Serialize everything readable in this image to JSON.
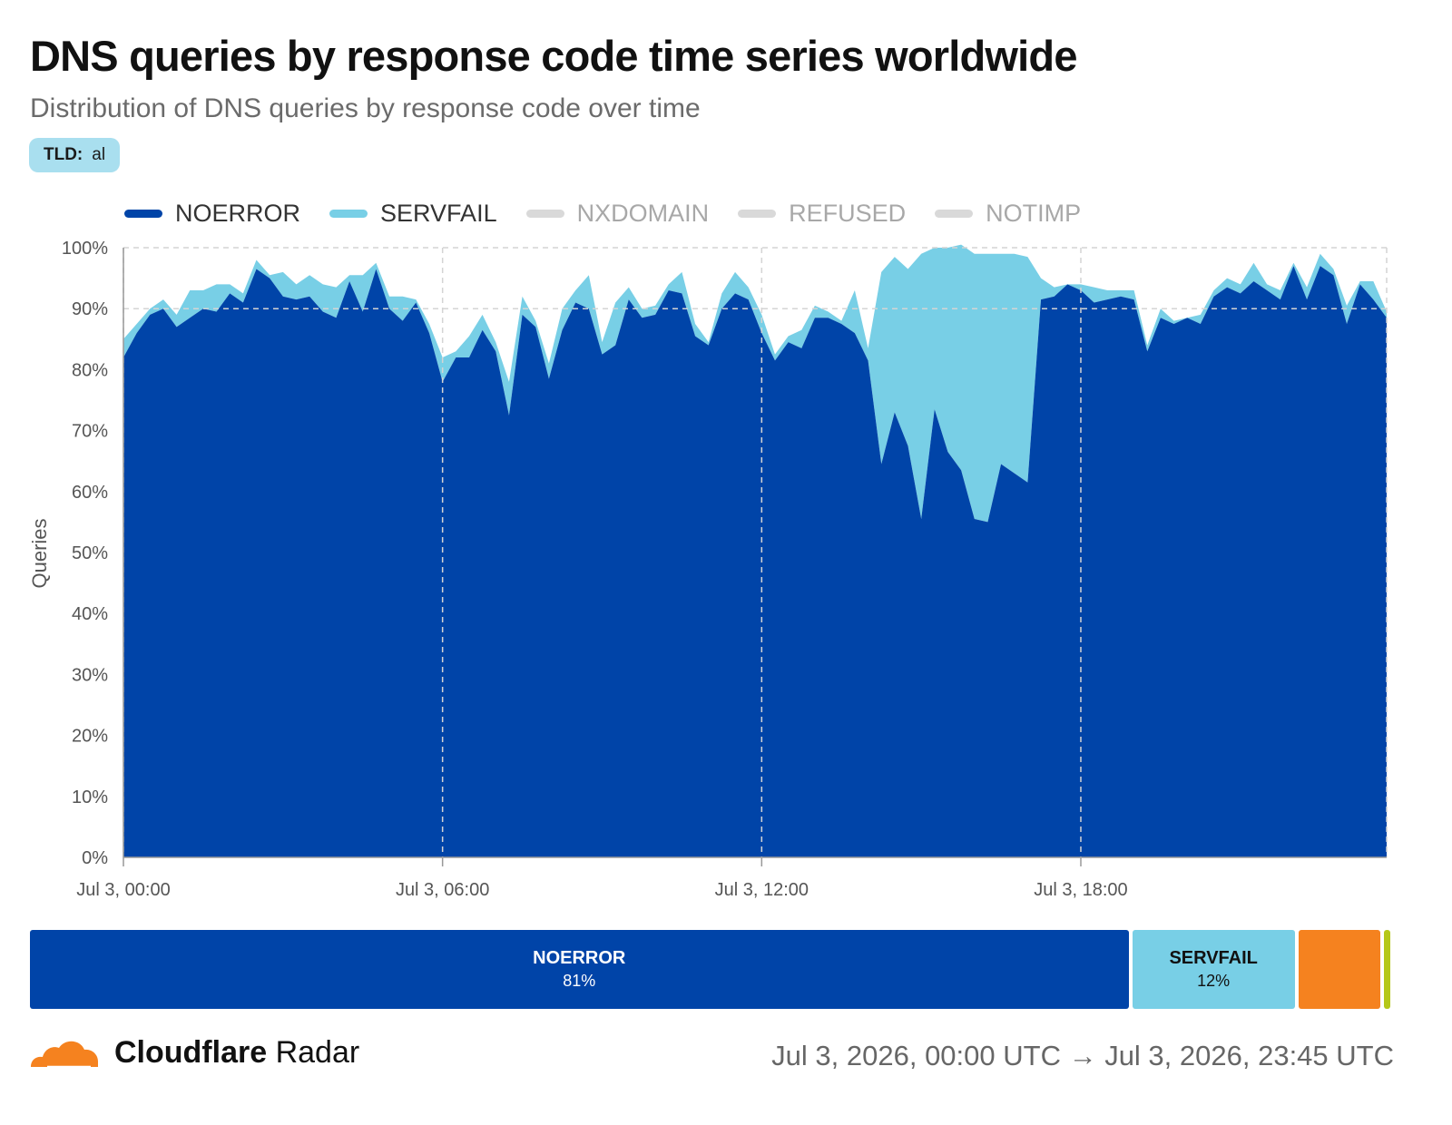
{
  "header": {
    "title": "DNS queries by response code time series worldwide",
    "subtitle": "Distribution of DNS queries by response code over time",
    "filter": {
      "key": "TLD:",
      "value": "al",
      "bg": "#a9dfef"
    }
  },
  "legend": [
    {
      "name": "NOERROR",
      "color": "#0044a8",
      "active": true
    },
    {
      "name": "SERVFAIL",
      "color": "#78cfe6",
      "active": true
    },
    {
      "name": "NXDOMAIN",
      "color": "#d9d9d9",
      "active": false
    },
    {
      "name": "REFUSED",
      "color": "#d9d9d9",
      "active": false
    },
    {
      "name": "NOTIMP",
      "color": "#d9d9d9",
      "active": false
    }
  ],
  "chart_data": {
    "type": "area",
    "stacked": true,
    "ylabel": "Queries",
    "ylim": [
      0,
      100
    ],
    "yticks": [
      "0%",
      "10%",
      "20%",
      "30%",
      "40%",
      "50%",
      "60%",
      "70%",
      "80%",
      "90%",
      "100%"
    ],
    "xlim": [
      "Jul 3, 00:00",
      "Jul 3, 23:45"
    ],
    "xticks": [
      "Jul 3, 00:00",
      "Jul 3, 06:00",
      "Jul 3, 12:00",
      "Jul 3, 18:00"
    ],
    "grid": true,
    "x": [
      "Jul 3, 00:00",
      "Jul 3, 00:15",
      "Jul 3, 00:30",
      "Jul 3, 00:45",
      "Jul 3, 01:00",
      "Jul 3, 01:15",
      "Jul 3, 01:30",
      "Jul 3, 01:45",
      "Jul 3, 02:00",
      "Jul 3, 02:15",
      "Jul 3, 02:30",
      "Jul 3, 02:45",
      "Jul 3, 03:00",
      "Jul 3, 03:15",
      "Jul 3, 03:30",
      "Jul 3, 03:45",
      "Jul 3, 04:00",
      "Jul 3, 04:15",
      "Jul 3, 04:30",
      "Jul 3, 04:45",
      "Jul 3, 05:00",
      "Jul 3, 05:15",
      "Jul 3, 05:30",
      "Jul 3, 05:45",
      "Jul 3, 06:00",
      "Jul 3, 06:15",
      "Jul 3, 06:30",
      "Jul 3, 06:45",
      "Jul 3, 07:00",
      "Jul 3, 07:15",
      "Jul 3, 07:30",
      "Jul 3, 07:45",
      "Jul 3, 08:00",
      "Jul 3, 08:15",
      "Jul 3, 08:30",
      "Jul 3, 08:45",
      "Jul 3, 09:00",
      "Jul 3, 09:15",
      "Jul 3, 09:30",
      "Jul 3, 09:45",
      "Jul 3, 10:00",
      "Jul 3, 10:15",
      "Jul 3, 10:30",
      "Jul 3, 10:45",
      "Jul 3, 11:00",
      "Jul 3, 11:15",
      "Jul 3, 11:30",
      "Jul 3, 11:45",
      "Jul 3, 12:00",
      "Jul 3, 12:15",
      "Jul 3, 12:30",
      "Jul 3, 12:45",
      "Jul 3, 13:00",
      "Jul 3, 13:15",
      "Jul 3, 13:30",
      "Jul 3, 13:45",
      "Jul 3, 14:00",
      "Jul 3, 14:15",
      "Jul 3, 14:30",
      "Jul 3, 14:45",
      "Jul 3, 15:00",
      "Jul 3, 15:15",
      "Jul 3, 15:30",
      "Jul 3, 15:45",
      "Jul 3, 16:00",
      "Jul 3, 16:15",
      "Jul 3, 16:30",
      "Jul 3, 16:45",
      "Jul 3, 17:00",
      "Jul 3, 17:15",
      "Jul 3, 17:30",
      "Jul 3, 17:45",
      "Jul 3, 18:00",
      "Jul 3, 18:15",
      "Jul 3, 18:30",
      "Jul 3, 18:45",
      "Jul 3, 19:00",
      "Jul 3, 19:15",
      "Jul 3, 19:30",
      "Jul 3, 19:45",
      "Jul 3, 20:00",
      "Jul 3, 20:15",
      "Jul 3, 20:30",
      "Jul 3, 20:45",
      "Jul 3, 21:00",
      "Jul 3, 21:15",
      "Jul 3, 21:30",
      "Jul 3, 21:45",
      "Jul 3, 22:00",
      "Jul 3, 22:15",
      "Jul 3, 22:30",
      "Jul 3, 22:45",
      "Jul 3, 23:00",
      "Jul 3, 23:15",
      "Jul 3, 23:30",
      "Jul 3, 23:45"
    ],
    "series": [
      {
        "name": "NOERROR",
        "color": "#0044a8",
        "values": [
          82,
          86,
          89,
          90,
          87,
          88.5,
          90,
          89.5,
          92.5,
          91,
          96.5,
          95,
          92,
          91.5,
          92,
          89.5,
          88.5,
          94.5,
          89.5,
          96.5,
          90,
          88,
          91,
          86,
          78,
          82,
          82,
          86.5,
          83,
          72.5,
          89,
          87,
          78.5,
          86.5,
          91,
          90,
          82.5,
          84,
          91.5,
          88.5,
          89,
          93,
          92.5,
          85.5,
          84,
          90,
          92.5,
          91.5,
          86,
          81.5,
          84.5,
          83.5,
          88.5,
          88.5,
          87.5,
          86,
          81.5,
          64.5,
          73,
          67.5,
          55.5,
          73.5,
          66.5,
          63.5,
          55.5,
          55,
          64.5,
          63,
          61.5,
          91.5,
          92,
          94,
          93,
          91,
          91.5,
          92,
          91.5,
          83,
          88.5,
          87.5,
          88.5,
          87.5,
          92,
          93.5,
          92.5,
          94.5,
          93,
          91.5,
          97,
          91.5,
          97,
          95.5,
          87.5,
          94,
          91.5,
          88.5
        ]
      },
      {
        "name": "SERVFAIL",
        "color": "#78cfe6",
        "values": [
          3,
          1.5,
          1,
          1.5,
          2,
          4.5,
          3,
          4.5,
          1.5,
          1.5,
          1.5,
          0.5,
          4,
          2.5,
          3.5,
          4.5,
          5,
          1,
          6,
          1,
          2,
          4,
          0.5,
          1.5,
          4,
          1,
          3.5,
          2.5,
          1.5,
          5.5,
          3,
          1,
          2.5,
          3.5,
          2,
          5.5,
          2,
          7,
          2,
          1.5,
          1.5,
          1,
          3.5,
          2,
          0.5,
          2.5,
          3.5,
          2,
          3,
          1,
          1,
          3,
          2,
          1,
          0.5,
          7,
          2,
          31.5,
          25.5,
          29,
          43.5,
          26.5,
          33.5,
          37,
          43.5,
          44,
          34.5,
          36,
          37,
          3.5,
          1.5,
          0,
          1,
          2.5,
          1.5,
          1,
          1.5,
          1,
          1.5,
          0.5,
          0,
          1.5,
          1,
          1.5,
          1.5,
          3,
          1,
          1.5,
          0.5,
          2,
          2,
          1,
          3,
          0.5,
          3,
          1
        ]
      }
    ],
    "summary": [
      {
        "name": "NOERROR",
        "share": 81,
        "label": "81%",
        "color": "#0044a8",
        "text": "#ffffff"
      },
      {
        "name": "SERVFAIL",
        "share": 12,
        "label": "12%",
        "color": "#78cfe6",
        "text": "#111111"
      },
      {
        "name": "",
        "share": 6,
        "label": "",
        "color": "#f5821f",
        "text": "#111111"
      },
      {
        "name": "",
        "share": 0.5,
        "label": "",
        "color": "#b5c718",
        "text": "#111111"
      }
    ]
  },
  "footer": {
    "brand_bold": "Cloudflare",
    "brand_rest": "Radar",
    "logo_icon": "cloudflare-cloud-icon",
    "logo_color": "#f5821f",
    "range": "Jul 3, 2026, 00:00 UTC → Jul 3, 2026, 23:45 UTC"
  }
}
